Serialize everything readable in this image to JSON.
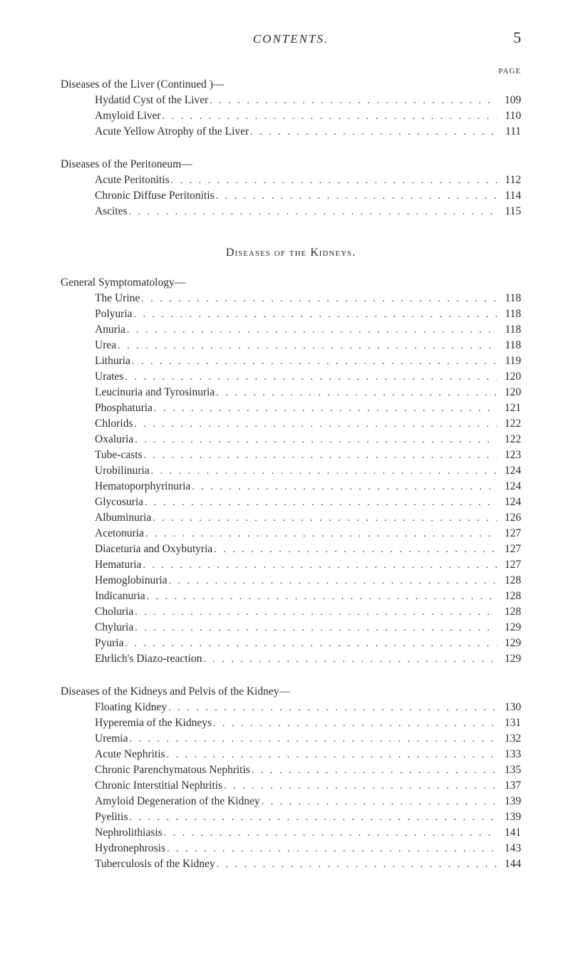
{
  "header": {
    "running_head": "CONTENTS.",
    "page_number": "5",
    "page_label": "PAGE"
  },
  "block1": {
    "heading": "Diseases of the Liver (Continued )—",
    "items": [
      {
        "label": "Hydatid Cyst of the Liver",
        "page": "109"
      },
      {
        "label": "Amyloid Liver",
        "page": "110"
      },
      {
        "label": "Acute Yellow Atrophy of the Liver",
        "page": "111"
      }
    ]
  },
  "block2": {
    "heading": "Diseases of the Peritoneum—",
    "items": [
      {
        "label": "Acute Peritonitis",
        "page": "112"
      },
      {
        "label": "Chronic Diffuse Peritonitis",
        "page": "114"
      },
      {
        "label": "Ascites",
        "page": "115"
      }
    ]
  },
  "section_kidneys_title": "Diseases of the Kidneys.",
  "block3": {
    "heading": "General Symptomatology—",
    "items": [
      {
        "label": "The Urine",
        "page": "118"
      },
      {
        "label": "Polyuria",
        "page": "118"
      },
      {
        "label": "Anuria",
        "page": "118"
      },
      {
        "label": "Urea",
        "page": "118"
      },
      {
        "label": "Lithuria",
        "page": "119"
      },
      {
        "label": "Urates",
        "page": "120"
      },
      {
        "label": "Leucinuria and Tyrosinuria",
        "page": "120"
      },
      {
        "label": "Phosphaturia",
        "page": "121"
      },
      {
        "label": "Chlorids",
        "page": "122"
      },
      {
        "label": "Oxaluria",
        "page": "122"
      },
      {
        "label": "Tube-casts",
        "page": "123"
      },
      {
        "label": "Urobilinuria",
        "page": "124"
      },
      {
        "label": "Hematoporphyrinuria",
        "page": "124"
      },
      {
        "label": "Glycosuria",
        "page": "124"
      },
      {
        "label": "Albuminuria",
        "page": "126"
      },
      {
        "label": "Acetonuria",
        "page": "127"
      },
      {
        "label": "Diaceturia and Oxybutyria",
        "page": "127"
      },
      {
        "label": "Hematuria",
        "page": "127"
      },
      {
        "label": "Hemoglobinuria",
        "page": "128"
      },
      {
        "label": "Indicanuria",
        "page": "128"
      },
      {
        "label": "Choluria",
        "page": "128"
      },
      {
        "label": "Chyluria",
        "page": "129"
      },
      {
        "label": "Pyuria",
        "page": "129"
      },
      {
        "label": "Ehrlich's Diazo-reaction",
        "page": "129"
      }
    ]
  },
  "block4": {
    "heading": "Diseases of the Kidneys and Pelvis of the Kidney—",
    "items": [
      {
        "label": "Floating Kidney",
        "page": "130"
      },
      {
        "label": "Hyperemia of the Kidneys",
        "page": "131"
      },
      {
        "label": "Uremia",
        "page": "132"
      },
      {
        "label": "Acute Nephritis",
        "page": "133"
      },
      {
        "label": "Chronic Parenchymatous Nephritis",
        "page": "135"
      },
      {
        "label": "Chronic Interstitial Nephritis",
        "page": "137"
      },
      {
        "label": "Amyloid Degeneration of the Kidney",
        "page": "139"
      },
      {
        "label": "Pyelitis",
        "page": "139"
      },
      {
        "label": "Nephrolithiasis",
        "page": "141"
      },
      {
        "label": "Hydronephrosis",
        "page": "143"
      },
      {
        "label": "Tuberculosis of the Kidney",
        "page": "144"
      }
    ]
  }
}
